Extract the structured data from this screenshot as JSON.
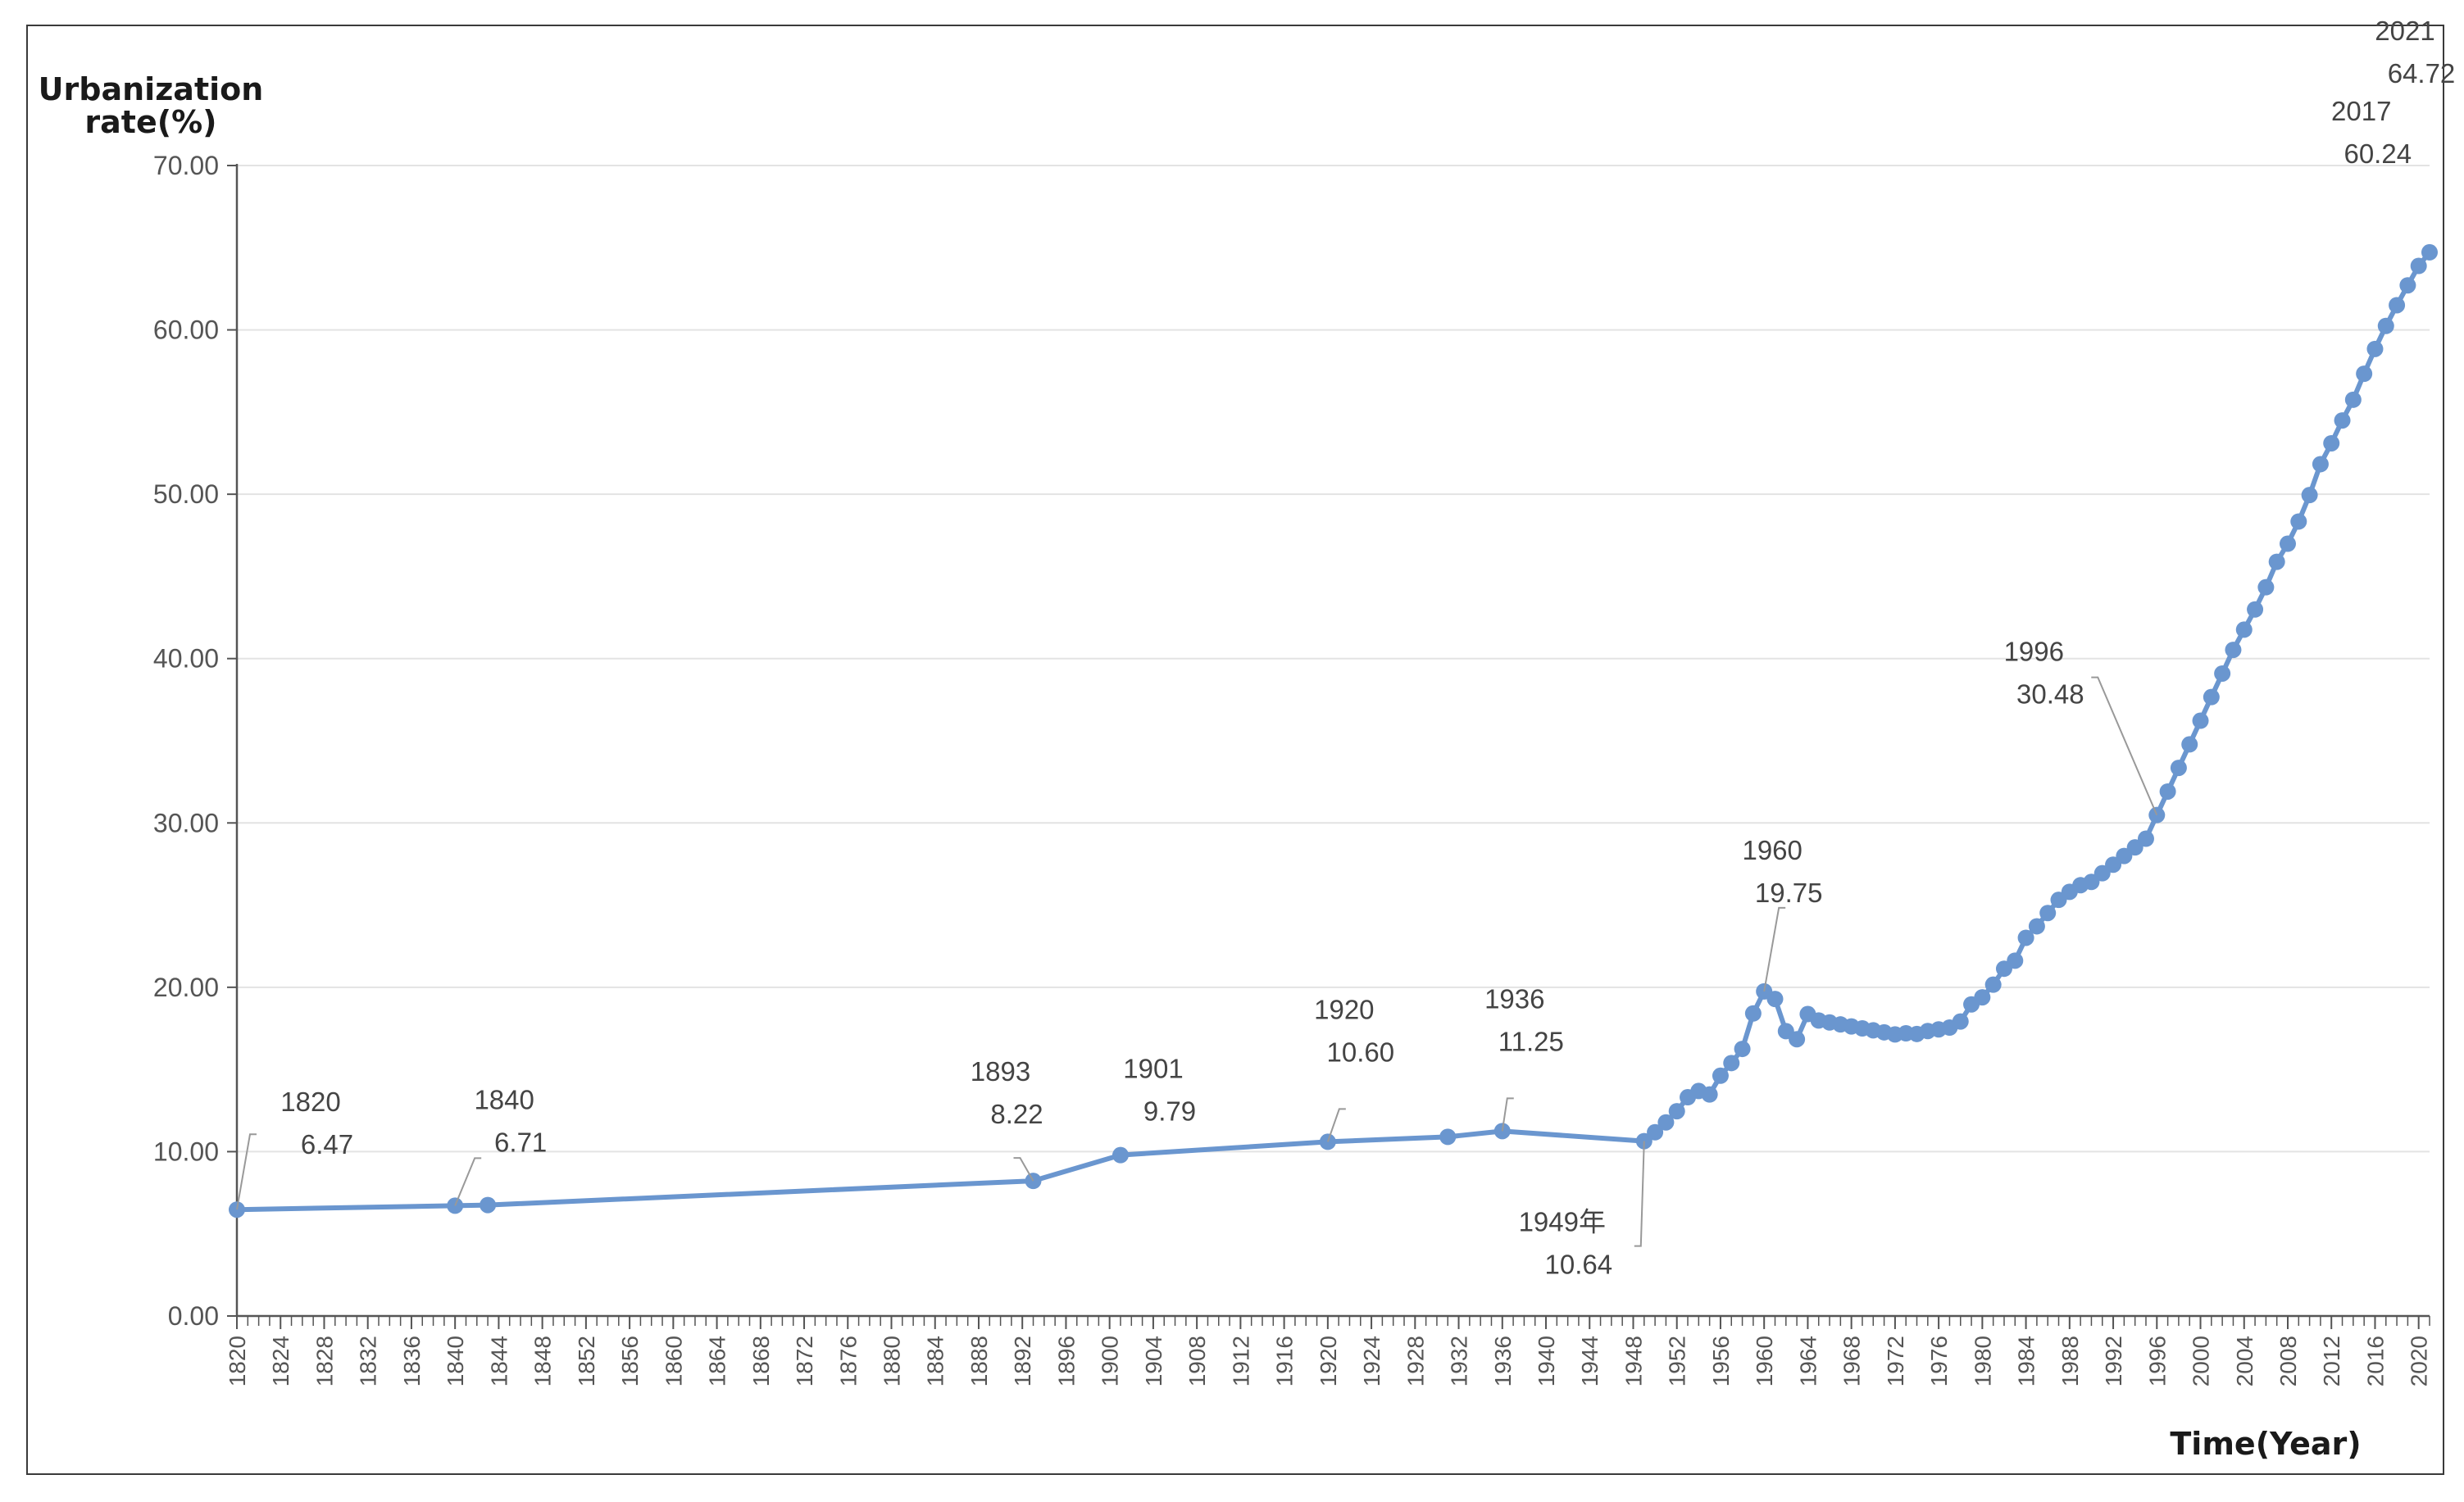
{
  "chart_data": {
    "type": "line",
    "title": "",
    "ylabel_line1": "Urbanization",
    "ylabel_line2": "rate(%)",
    "xlabel": "Time(Year)",
    "xlim": [
      1820,
      2021
    ],
    "ylim": [
      0,
      70
    ],
    "y_ticks": [
      "0.00",
      "10.00",
      "20.00",
      "30.00",
      "40.00",
      "50.00",
      "60.00",
      "70.00"
    ],
    "x_ticks": [
      "1820",
      "1824",
      "1828",
      "1832",
      "1836",
      "1840",
      "1844",
      "1848",
      "1852",
      "1856",
      "1860",
      "1864",
      "1868",
      "1872",
      "1876",
      "1880",
      "1884",
      "1888",
      "1892",
      "1896",
      "1900",
      "1904",
      "1908",
      "1912",
      "1916",
      "1920",
      "1924",
      "1928",
      "1932",
      "1936",
      "1940",
      "1944",
      "1948",
      "1952",
      "1956",
      "1960",
      "1964",
      "1968",
      "1972",
      "1976",
      "1980",
      "1984",
      "1988",
      "1992",
      "1996",
      "2000",
      "2004",
      "2008",
      "2012",
      "2016",
      "2020"
    ],
    "grid": true,
    "line_color": "#6a96cf",
    "series": [
      {
        "points": [
          [
            1820,
            6.47
          ],
          [
            1840,
            6.71
          ],
          [
            1843,
            6.75
          ],
          [
            1893,
            8.22
          ],
          [
            1901,
            9.79
          ],
          [
            1920,
            10.6
          ],
          [
            1931,
            10.9
          ],
          [
            1936,
            11.25
          ],
          [
            1949,
            10.64
          ],
          [
            1950,
            11.18
          ],
          [
            1951,
            11.78
          ],
          [
            1952,
            12.46
          ],
          [
            1953,
            13.31
          ],
          [
            1954,
            13.69
          ],
          [
            1955,
            13.48
          ],
          [
            1956,
            14.62
          ],
          [
            1957,
            15.39
          ],
          [
            1958,
            16.25
          ],
          [
            1959,
            18.41
          ],
          [
            1960,
            19.75
          ],
          [
            1961,
            19.29
          ],
          [
            1962,
            17.33
          ],
          [
            1963,
            16.84
          ],
          [
            1964,
            18.37
          ],
          [
            1965,
            17.98
          ],
          [
            1966,
            17.86
          ],
          [
            1967,
            17.74
          ],
          [
            1968,
            17.62
          ],
          [
            1969,
            17.5
          ],
          [
            1970,
            17.38
          ],
          [
            1971,
            17.26
          ],
          [
            1972,
            17.13
          ],
          [
            1973,
            17.2
          ],
          [
            1974,
            17.16
          ],
          [
            1975,
            17.34
          ],
          [
            1976,
            17.44
          ],
          [
            1977,
            17.55
          ],
          [
            1978,
            17.92
          ],
          [
            1979,
            18.96
          ],
          [
            1980,
            19.39
          ],
          [
            1981,
            20.16
          ],
          [
            1982,
            21.13
          ],
          [
            1983,
            21.62
          ],
          [
            1984,
            23.01
          ],
          [
            1985,
            23.71
          ],
          [
            1986,
            24.52
          ],
          [
            1987,
            25.32
          ],
          [
            1988,
            25.81
          ],
          [
            1989,
            26.21
          ],
          [
            1990,
            26.41
          ],
          [
            1991,
            26.94
          ],
          [
            1992,
            27.46
          ],
          [
            1993,
            27.99
          ],
          [
            1994,
            28.51
          ],
          [
            1995,
            29.04
          ],
          [
            1996,
            30.48
          ],
          [
            1997,
            31.91
          ],
          [
            1998,
            33.35
          ],
          [
            1999,
            34.78
          ],
          [
            2000,
            36.22
          ],
          [
            2001,
            37.66
          ],
          [
            2002,
            39.09
          ],
          [
            2003,
            40.53
          ],
          [
            2004,
            41.76
          ],
          [
            2005,
            42.99
          ],
          [
            2006,
            44.34
          ],
          [
            2007,
            45.89
          ],
          [
            2008,
            46.99
          ],
          [
            2009,
            48.34
          ],
          [
            2010,
            49.95
          ],
          [
            2011,
            51.83
          ],
          [
            2012,
            53.1
          ],
          [
            2013,
            54.49
          ],
          [
            2014,
            55.75
          ],
          [
            2015,
            57.33
          ],
          [
            2016,
            58.84
          ],
          [
            2017,
            60.24
          ],
          [
            2018,
            61.5
          ],
          [
            2019,
            62.71
          ],
          [
            2020,
            63.89
          ],
          [
            2021,
            64.72
          ]
        ]
      }
    ],
    "annotations": [
      {
        "year_label": "1820",
        "value_label": "6.47",
        "x": 1820,
        "y": 6.47
      },
      {
        "year_label": "1840",
        "value_label": "6.71",
        "x": 1840,
        "y": 6.71
      },
      {
        "year_label": "1893",
        "value_label": "8.22",
        "x": 1893,
        "y": 8.22
      },
      {
        "year_label": "1901",
        "value_label": "9.79",
        "x": 1901,
        "y": 9.79
      },
      {
        "year_label": "1920",
        "value_label": "10.60",
        "x": 1920,
        "y": 10.6
      },
      {
        "year_label": "1936",
        "value_label": "11.25",
        "x": 1936,
        "y": 11.25
      },
      {
        "year_label": "1949年",
        "value_label": "10.64",
        "x": 1949,
        "y": 10.64
      },
      {
        "year_label": "1960",
        "value_label": "19.75",
        "x": 1960,
        "y": 19.75
      },
      {
        "year_label": "1996",
        "value_label": "30.48",
        "x": 1996,
        "y": 30.48
      },
      {
        "year_label": "2017",
        "value_label": "60.24",
        "x": 2017,
        "y": 60.24
      },
      {
        "year_label": "2021",
        "value_label": "64.72",
        "x": 2021,
        "y": 64.72
      }
    ]
  }
}
